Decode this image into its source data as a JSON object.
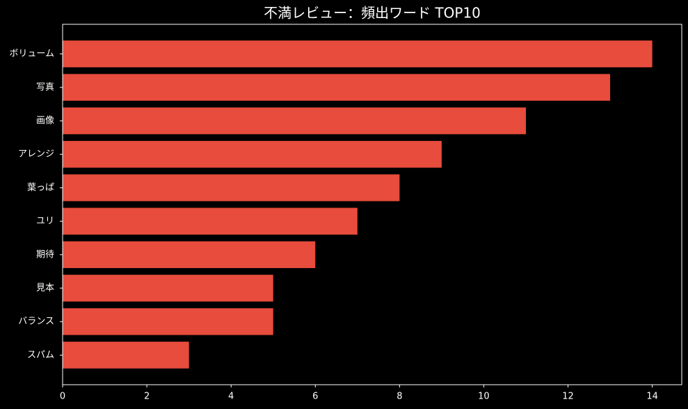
{
  "chart_data": {
    "type": "barh",
    "title": "不満レビュー：頻出ワード TOP10",
    "categories": [
      "ボリューム",
      "写真",
      "画像",
      "アレンジ",
      "葉っぱ",
      "ユリ",
      "期待",
      "見本",
      "バランス",
      "スパム"
    ],
    "values": [
      14,
      13,
      11,
      9,
      8,
      7,
      6,
      5,
      5,
      3
    ],
    "color": "#e74c3c",
    "xlim": [
      0,
      14.7
    ],
    "xticks": [
      0,
      2,
      4,
      6,
      8,
      10,
      12,
      14
    ],
    "grid": false
  }
}
